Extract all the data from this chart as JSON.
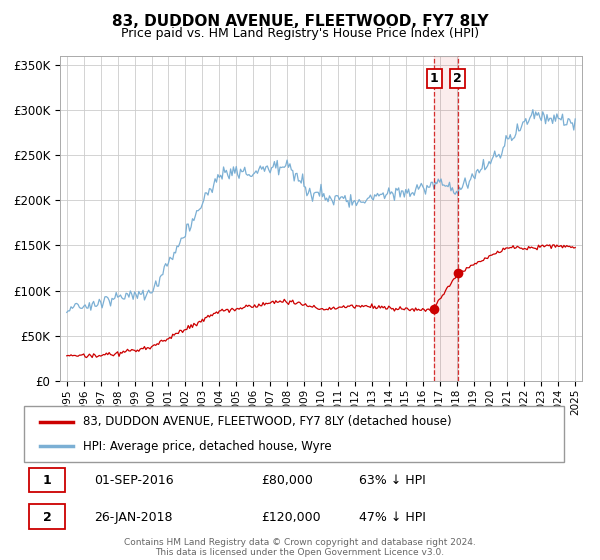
{
  "title": "83, DUDDON AVENUE, FLEETWOOD, FY7 8LY",
  "subtitle": "Price paid vs. HM Land Registry's House Price Index (HPI)",
  "ylim": [
    0,
    360000
  ],
  "yticks": [
    0,
    50000,
    100000,
    150000,
    200000,
    250000,
    300000,
    350000
  ],
  "ytick_labels": [
    "£0",
    "£50K",
    "£100K",
    "£150K",
    "£200K",
    "£250K",
    "£300K",
    "£350K"
  ],
  "background_color": "#ffffff",
  "grid_color": "#cccccc",
  "transaction1": {
    "date_label": "01-SEP-2016",
    "price": 80000,
    "pct": "63% ↓ HPI",
    "year": 2016.67,
    "marker_val": 80000
  },
  "transaction2": {
    "date_label": "26-JAN-2018",
    "price": 120000,
    "pct": "47% ↓ HPI",
    "year": 2018.07,
    "marker_val": 120000
  },
  "legend_entry1": "83, DUDDON AVENUE, FLEETWOOD, FY7 8LY (detached house)",
  "legend_entry2": "HPI: Average price, detached house, Wyre",
  "footer": "Contains HM Land Registry data © Crown copyright and database right 2024.\nThis data is licensed under the Open Government Licence v3.0.",
  "hpi_color": "#7bafd4",
  "price_color": "#cc0000",
  "vline_color": "#cc0000",
  "start_year": 1995,
  "end_year": 2025
}
